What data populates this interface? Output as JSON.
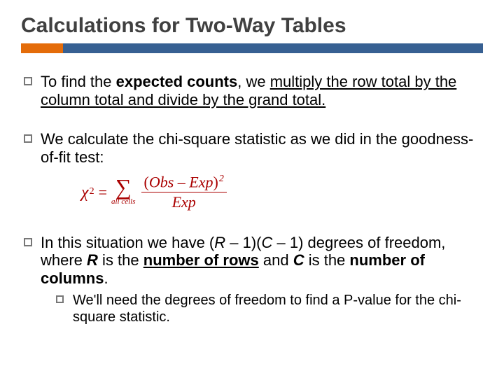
{
  "title": "Calculations for Two-Way Tables",
  "colors": {
    "bar_main": "#376092",
    "bar_accent": "#e46c0a",
    "formula": "#aa0000",
    "title": "#404040"
  },
  "bullets": {
    "b1": {
      "pre": "To find the ",
      "bold": "expected counts",
      "post": ", we ",
      "u1": "multiply the row total by the column total and divide by the grand total."
    },
    "b2": "We calculate the chi-square statistic as we did in the goodness-of-fit test:",
    "b3": {
      "line1_pre": "In this situation we have (",
      "R": "R",
      "mid1": " – 1)(",
      "C": "C",
      "mid2": " – 1) degrees of freedom, where ",
      "R2": "R",
      "is1": " is the ",
      "rows": "number of rows",
      "and": " and ",
      "C2": "C",
      "is2": " is the ",
      "cols": "number of columns",
      "end": "."
    },
    "sub1": "We'll need the degrees of freedom to find a P-value for the chi-square statistic."
  },
  "formula": {
    "chi": "χ",
    "sq": "2",
    "eq": "=",
    "sigma": "∑",
    "sigma_sub": "all cells",
    "num_open": "(",
    "obs": "Obs",
    "minus": " – ",
    "exp": "Exp",
    "num_close": ")",
    "den": "Exp"
  }
}
